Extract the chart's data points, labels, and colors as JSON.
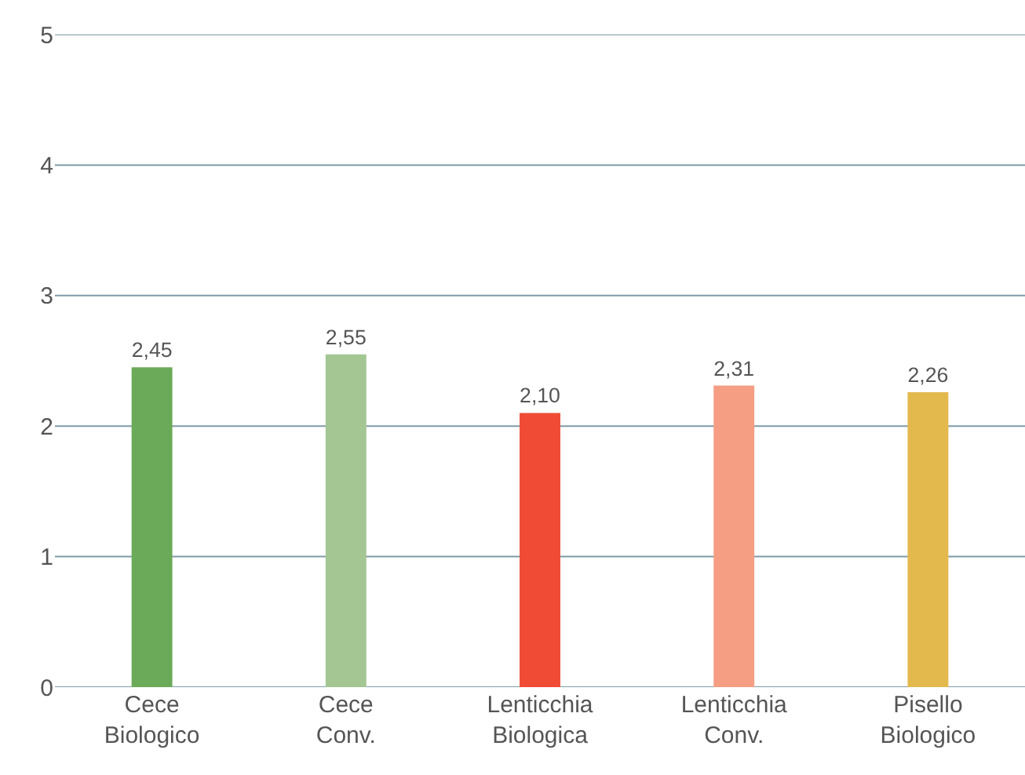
{
  "chart_data": {
    "type": "bar",
    "categories": [
      "Cece\nBiologico",
      "Cece\nConv.",
      "Lenticchia\nBiologica",
      "Lenticchia\nConv.",
      "Pisello\nBiologico"
    ],
    "values": [
      2.45,
      2.55,
      2.1,
      2.31,
      2.26
    ],
    "colors": [
      "#6aaa58",
      "#a3c693",
      "#ef4b35",
      "#f59e83",
      "#e3b94e"
    ],
    "value_labels": [
      "2,45",
      "2,55",
      "2,10",
      "2,31",
      "2,26"
    ],
    "ylim": [
      0,
      5
    ],
    "yticks": [
      0,
      1,
      2,
      3,
      4,
      5
    ],
    "grid": "y"
  }
}
